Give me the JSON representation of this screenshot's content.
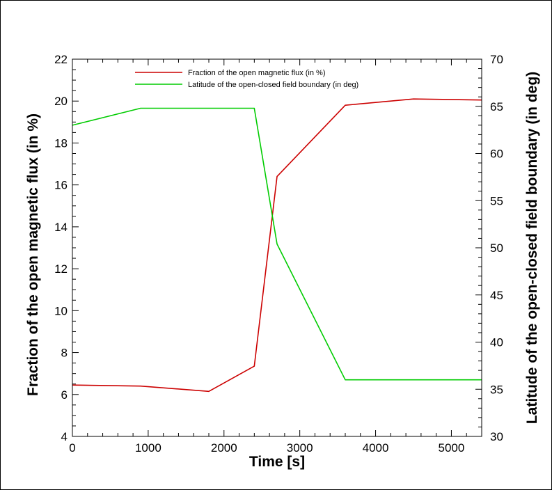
{
  "chart_data": {
    "type": "line",
    "xlabel": "Time [s]",
    "ylabel_left": "Fraction of the open magnetic flux (in %)",
    "ylabel_right": "Latitude of the open-closed field boundary (in deg)",
    "xlim": [
      0,
      5400
    ],
    "ylim_left": [
      4,
      22
    ],
    "ylim_right": [
      30,
      70
    ],
    "x_ticks": [
      0,
      1000,
      2000,
      3000,
      4000,
      5000
    ],
    "y_ticks_left": [
      4,
      6,
      8,
      10,
      12,
      14,
      16,
      18,
      20,
      22
    ],
    "y_ticks_right": [
      30,
      35,
      40,
      45,
      50,
      55,
      60,
      65,
      70
    ],
    "grid": false,
    "legend_position": "top-center",
    "series": [
      {
        "name": "Fraction of the open magnetic flux (in %)",
        "axis": "left",
        "color": "#cc0000",
        "x": [
          0,
          900,
          1800,
          2400,
          2700,
          3600,
          4500,
          5400
        ],
        "y": [
          6.45,
          6.4,
          6.15,
          7.35,
          16.4,
          19.8,
          20.1,
          20.05
        ]
      },
      {
        "name": "Latitude of the open-closed field boundary (in deg)",
        "axis": "right",
        "color": "#00cc00",
        "x": [
          0,
          900,
          1800,
          2400,
          2700,
          3600,
          4500,
          5400
        ],
        "y": [
          63.0,
          64.8,
          64.8,
          64.8,
          50.4,
          36.0,
          36.0,
          36.0
        ]
      }
    ]
  }
}
